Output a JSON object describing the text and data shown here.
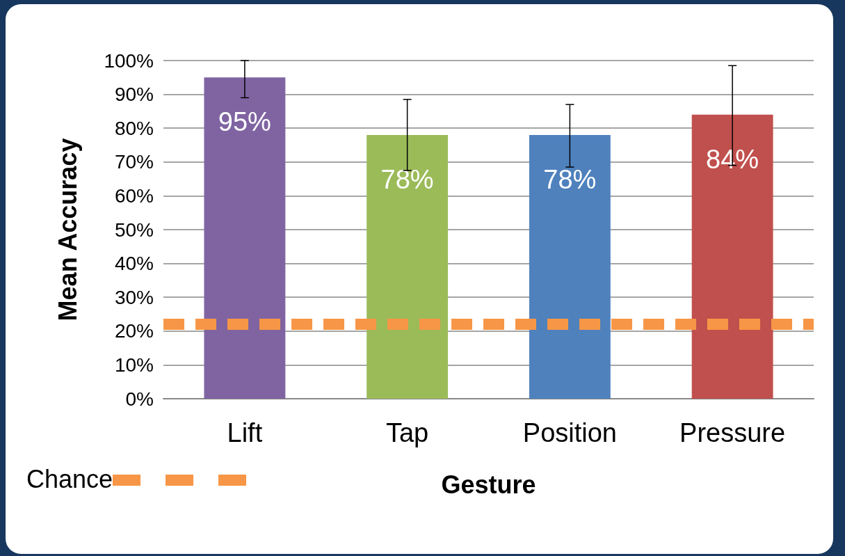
{
  "chart_data": {
    "type": "bar",
    "xlabel": "Gesture",
    "ylabel": "Mean Accuracy",
    "categories": [
      "Lift",
      "Tap",
      "Position",
      "Pressure"
    ],
    "values": [
      95,
      78,
      78,
      84
    ],
    "colors": [
      "#8064a2",
      "#9bbb59",
      "#4f81bd",
      "#c0504d"
    ],
    "errors": [
      [
        89,
        100
      ],
      [
        67.5,
        88.5
      ],
      [
        68.5,
        87
      ],
      [
        69,
        98.5
      ]
    ],
    "data_labels": true,
    "value_labels": [
      "95%",
      "78%",
      "78%",
      "84%"
    ],
    "ylim": [
      0,
      100
    ],
    "yticks": [
      {
        "value": 0,
        "label": "0%"
      },
      {
        "value": 10,
        "label": "10%"
      },
      {
        "value": 20,
        "label": "20%"
      },
      {
        "value": 30,
        "label": "30%"
      },
      {
        "value": 40,
        "label": "40%"
      },
      {
        "value": 50,
        "label": "50%"
      },
      {
        "value": 60,
        "label": "60%"
      },
      {
        "value": 70,
        "label": "70%"
      },
      {
        "value": 80,
        "label": "80%"
      },
      {
        "value": 90,
        "label": "90%"
      },
      {
        "value": 100,
        "label": "100%"
      }
    ],
    "grid": "y",
    "legend": "bottom left",
    "ref_lines": [
      {
        "axis": "y",
        "value": 22,
        "label": "Chance",
        "color": "#f79646",
        "line_style": "dashed"
      }
    ]
  }
}
